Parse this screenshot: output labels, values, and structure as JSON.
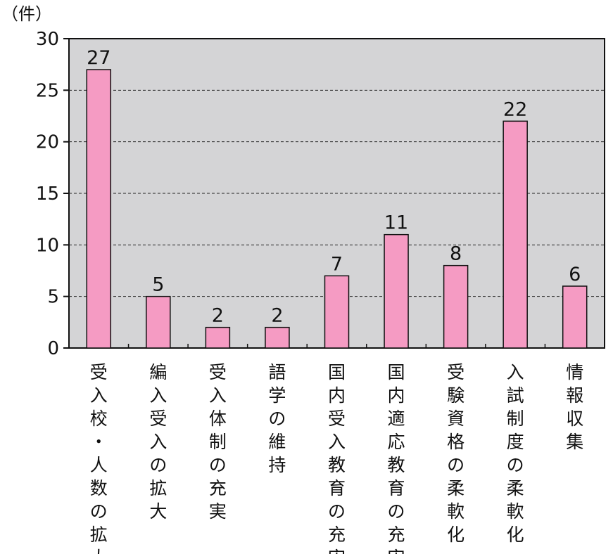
{
  "chart_data": {
    "type": "bar",
    "y_unit_label": "（件）",
    "categories": [
      "受入校・人数の拡大",
      "編入受入の拡大",
      "受入体制の充実",
      "語学の維持",
      "国内受入教育の充実",
      "国内適応教育の充実",
      "受験資格の柔軟化",
      "入試制度の柔軟化",
      "情報収集"
    ],
    "values": [
      27,
      5,
      2,
      2,
      7,
      11,
      8,
      22,
      6
    ],
    "ylim": [
      0,
      30
    ],
    "yticks": [
      0,
      5,
      10,
      15,
      20,
      25,
      30
    ],
    "grid": true,
    "bar_color": "#f59bc3",
    "plot_background": "#d4d4d6"
  }
}
